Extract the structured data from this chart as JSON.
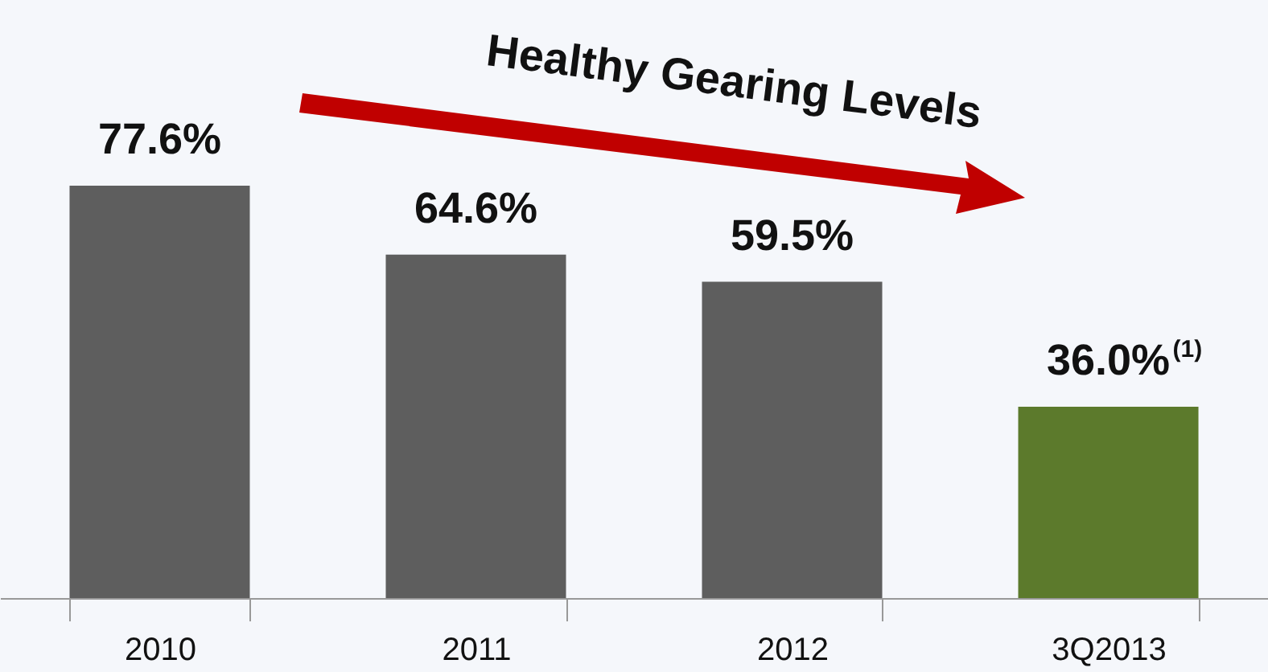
{
  "chart_data": {
    "type": "bar",
    "categories": [
      "2010",
      "2011",
      "2012",
      "3Q2013"
    ],
    "values": [
      77.6,
      64.6,
      59.5,
      36.0
    ],
    "colors": [
      "#5e5e5e",
      "#5e5e5e",
      "#5e5e5e",
      "#5c7a2c"
    ],
    "value_labels": [
      "77.6%",
      "64.6%",
      "59.5%",
      "36.0%$^{(1)}$"
    ],
    "annotations": [
      "Healthy Gearing Levels"
    ]
  }
}
